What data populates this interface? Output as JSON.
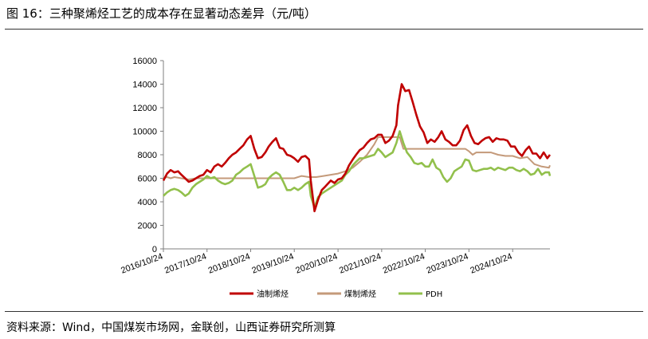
{
  "figure_title": "图 16：三种聚烯烃工艺的成本存在显著动态差异（元/吨）",
  "source_note": "资料来源：Wind，中国煤炭市场网，金联创，山西证券研究所测算",
  "chart_data": {
    "type": "line",
    "title": "",
    "xlabel": "",
    "ylabel": "",
    "ylim": [
      0,
      16000
    ],
    "yticks": [
      0,
      2000,
      4000,
      6000,
      8000,
      10000,
      12000,
      14000,
      16000
    ],
    "xlim": [
      "2016-10-24",
      "2025-09-01"
    ],
    "xticks": [
      "2016/10/24",
      "2017/10/24",
      "2018/10/24",
      "2019/10/24",
      "2020/10/24",
      "2021/10/24",
      "2022/10/24",
      "2023/10/24",
      "2024/10/24"
    ],
    "grid": false,
    "legend_position": "bottom",
    "series": [
      {
        "name": "油制烯烃",
        "color": "#c00000",
        "x": [
          "2016-10-24",
          "2016-11-24",
          "2016-12-24",
          "2017-01-24",
          "2017-02-24",
          "2017-03-24",
          "2017-04-24",
          "2017-05-24",
          "2017-06-24",
          "2017-07-24",
          "2017-08-24",
          "2017-09-24",
          "2017-10-24",
          "2017-11-24",
          "2017-12-24",
          "2018-01-24",
          "2018-02-24",
          "2018-03-24",
          "2018-04-24",
          "2018-05-24",
          "2018-06-24",
          "2018-07-24",
          "2018-08-24",
          "2018-09-24",
          "2018-10-24",
          "2018-11-24",
          "2018-12-24",
          "2019-01-24",
          "2019-02-24",
          "2019-03-24",
          "2019-04-24",
          "2019-05-24",
          "2019-06-24",
          "2019-07-24",
          "2019-08-24",
          "2019-09-24",
          "2019-10-24",
          "2019-11-24",
          "2019-12-24",
          "2020-01-24",
          "2020-02-24",
          "2020-03-10",
          "2020-04-10",
          "2020-05-10",
          "2020-06-10",
          "2020-07-10",
          "2020-08-24",
          "2020-09-24",
          "2020-10-24",
          "2020-11-24",
          "2020-12-24",
          "2021-01-24",
          "2021-02-24",
          "2021-03-24",
          "2021-04-24",
          "2021-05-24",
          "2021-06-24",
          "2021-07-24",
          "2021-08-24",
          "2021-09-24",
          "2021-10-24",
          "2021-11-24",
          "2021-12-24",
          "2022-01-24",
          "2022-02-24",
          "2022-03-10",
          "2022-04-10",
          "2022-05-10",
          "2022-06-10",
          "2022-07-10",
          "2022-08-10",
          "2022-09-10",
          "2022-10-10",
          "2022-11-10",
          "2022-12-10",
          "2023-01-10",
          "2023-02-10",
          "2023-03-10",
          "2023-04-10",
          "2023-05-10",
          "2023-06-10",
          "2023-07-10",
          "2023-08-10",
          "2023-09-10",
          "2023-10-10",
          "2023-11-10",
          "2023-12-10",
          "2024-01-10",
          "2024-02-10",
          "2024-03-10",
          "2024-04-10",
          "2024-05-10",
          "2024-06-10",
          "2024-07-10",
          "2024-08-10",
          "2024-09-10",
          "2024-10-10",
          "2024-11-10",
          "2024-12-10",
          "2025-01-10",
          "2025-02-10",
          "2025-03-10",
          "2025-04-10",
          "2025-05-10",
          "2025-06-10",
          "2025-07-10",
          "2025-08-10",
          "2025-09-01"
        ],
        "y": [
          5800,
          6400,
          6700,
          6500,
          6600,
          6300,
          6000,
          5700,
          5800,
          6000,
          6200,
          6300,
          6700,
          6500,
          7000,
          7200,
          7000,
          7300,
          7700,
          8000,
          8200,
          8500,
          8800,
          9300,
          9600,
          8500,
          7700,
          7800,
          8200,
          8700,
          9100,
          9400,
          8600,
          8500,
          8000,
          7900,
          7700,
          7400,
          7800,
          7900,
          7600,
          5800,
          3200,
          4200,
          5000,
          5300,
          5800,
          5600,
          5900,
          6000,
          6400,
          7100,
          7600,
          8000,
          8400,
          8600,
          9000,
          9300,
          9400,
          9700,
          9700,
          9000,
          9200,
          9600,
          10500,
          12200,
          14000,
          13400,
          13500,
          12500,
          11400,
          10400,
          9900,
          9000,
          9300,
          9100,
          9500,
          10000,
          9300,
          9100,
          8800,
          8800,
          9200,
          10100,
          10500,
          9600,
          9000,
          8900,
          9200,
          9400,
          9500,
          9100,
          9400,
          9300,
          9300,
          9200,
          8700,
          8700,
          8200,
          7900,
          8400,
          8700,
          8100,
          8100,
          7700,
          8200,
          7700,
          8000
        ]
      },
      {
        "name": "煤制烯烃",
        "color": "#c49a7a",
        "x": [
          "2016-10-24",
          "2016-11-24",
          "2016-12-24",
          "2017-01-24",
          "2017-03-24",
          "2017-05-24",
          "2017-07-24",
          "2017-09-24",
          "2017-10-24",
          "2017-12-24",
          "2018-02-24",
          "2018-04-24",
          "2018-06-24",
          "2018-08-24",
          "2018-10-24",
          "2018-12-24",
          "2019-02-24",
          "2019-04-24",
          "2019-06-24",
          "2019-08-24",
          "2019-10-24",
          "2019-12-24",
          "2020-02-24",
          "2020-04-24",
          "2020-06-24",
          "2020-08-24",
          "2020-10-24",
          "2020-12-24",
          "2021-02-24",
          "2021-04-24",
          "2021-06-24",
          "2021-08-24",
          "2021-09-24",
          "2021-10-24",
          "2021-11-24",
          "2021-12-24",
          "2022-01-24",
          "2022-02-24",
          "2022-03-24",
          "2022-04-24",
          "2022-06-24",
          "2022-08-24",
          "2022-10-24",
          "2022-12-24",
          "2023-02-24",
          "2023-04-24",
          "2023-06-24",
          "2023-08-24",
          "2023-09-24",
          "2023-10-24",
          "2023-11-24",
          "2023-12-24",
          "2024-02-24",
          "2024-04-24",
          "2024-06-24",
          "2024-08-24",
          "2024-10-24",
          "2024-12-24",
          "2025-02-24",
          "2025-04-24",
          "2025-06-24",
          "2025-08-24",
          "2025-09-01"
        ],
        "y": [
          6000,
          6100,
          6000,
          6100,
          6000,
          5900,
          6000,
          6000,
          6000,
          6000,
          6000,
          6000,
          6000,
          6000,
          6000,
          6000,
          6000,
          6000,
          6000,
          6000,
          6000,
          6200,
          6100,
          6100,
          6200,
          6300,
          6400,
          6600,
          6900,
          7400,
          8000,
          8900,
          9500,
          9500,
          9500,
          9500,
          9500,
          9500,
          9500,
          8500,
          8500,
          8500,
          8500,
          8500,
          8500,
          8500,
          8500,
          8500,
          8500,
          8300,
          8000,
          8200,
          8200,
          8200,
          8000,
          7900,
          7900,
          7700,
          7800,
          7200,
          7000,
          6900,
          7100
        ]
      },
      {
        "name": "PDH",
        "color": "#92c04c",
        "x": [
          "2016-10-24",
          "2016-11-24",
          "2016-12-24",
          "2017-01-24",
          "2017-02-24",
          "2017-03-24",
          "2017-04-24",
          "2017-05-24",
          "2017-06-24",
          "2017-07-24",
          "2017-08-24",
          "2017-09-24",
          "2017-10-24",
          "2017-11-24",
          "2017-12-24",
          "2018-01-24",
          "2018-02-24",
          "2018-03-24",
          "2018-04-24",
          "2018-05-24",
          "2018-06-24",
          "2018-07-24",
          "2018-08-24",
          "2018-09-24",
          "2018-10-24",
          "2018-11-24",
          "2018-12-24",
          "2019-01-24",
          "2019-02-24",
          "2019-03-24",
          "2019-04-24",
          "2019-05-24",
          "2019-06-24",
          "2019-07-24",
          "2019-08-24",
          "2019-09-24",
          "2019-10-24",
          "2019-11-24",
          "2019-12-24",
          "2020-01-24",
          "2020-02-24",
          "2020-03-10",
          "2020-04-10",
          "2020-05-10",
          "2020-06-10",
          "2020-07-10",
          "2020-08-24",
          "2020-09-24",
          "2020-10-24",
          "2020-11-24",
          "2020-12-24",
          "2021-01-24",
          "2021-02-24",
          "2021-03-24",
          "2021-04-24",
          "2021-05-24",
          "2021-06-24",
          "2021-07-24",
          "2021-08-24",
          "2021-09-24",
          "2021-10-24",
          "2021-11-24",
          "2021-12-24",
          "2022-01-24",
          "2022-02-24",
          "2022-03-24",
          "2022-04-24",
          "2022-05-24",
          "2022-06-24",
          "2022-07-24",
          "2022-08-24",
          "2022-09-24",
          "2022-10-24",
          "2022-11-24",
          "2022-12-24",
          "2023-01-24",
          "2023-02-24",
          "2023-03-24",
          "2023-04-24",
          "2023-05-24",
          "2023-06-24",
          "2023-07-24",
          "2023-08-24",
          "2023-09-24",
          "2023-10-24",
          "2023-11-24",
          "2023-12-24",
          "2024-01-24",
          "2024-02-24",
          "2024-03-24",
          "2024-04-24",
          "2024-05-24",
          "2024-06-24",
          "2024-07-24",
          "2024-08-24",
          "2024-09-24",
          "2024-10-24",
          "2024-11-24",
          "2024-12-24",
          "2025-01-24",
          "2025-02-24",
          "2025-03-24",
          "2025-04-24",
          "2025-05-24",
          "2025-06-24",
          "2025-07-24",
          "2025-08-24",
          "2025-09-01"
        ],
        "y": [
          4500,
          4800,
          5000,
          5100,
          5000,
          4800,
          4500,
          4700,
          5200,
          5500,
          5700,
          5900,
          6200,
          6000,
          6100,
          5800,
          5600,
          5500,
          5600,
          5800,
          6300,
          6500,
          6800,
          7000,
          7200,
          6200,
          5200,
          5300,
          5500,
          6000,
          6300,
          6500,
          6300,
          5700,
          5000,
          5000,
          5200,
          5000,
          5200,
          5500,
          5700,
          4500,
          3500,
          4400,
          4700,
          4900,
          5200,
          5400,
          5600,
          5800,
          6300,
          6600,
          7100,
          7400,
          7700,
          7700,
          7800,
          7900,
          8000,
          8500,
          8200,
          7800,
          8000,
          8200,
          9000,
          10000,
          9000,
          8200,
          7800,
          7300,
          7200,
          7300,
          7000,
          7000,
          7600,
          6900,
          6700,
          6100,
          5700,
          6000,
          6600,
          6800,
          7000,
          7600,
          7500,
          6700,
          6600,
          6700,
          6800,
          6800,
          6900,
          6700,
          6900,
          6800,
          6700,
          6900,
          6900,
          6700,
          6600,
          6800,
          6600,
          6300,
          6400,
          6800,
          6300,
          6500,
          6500,
          6200
        ]
      }
    ]
  }
}
